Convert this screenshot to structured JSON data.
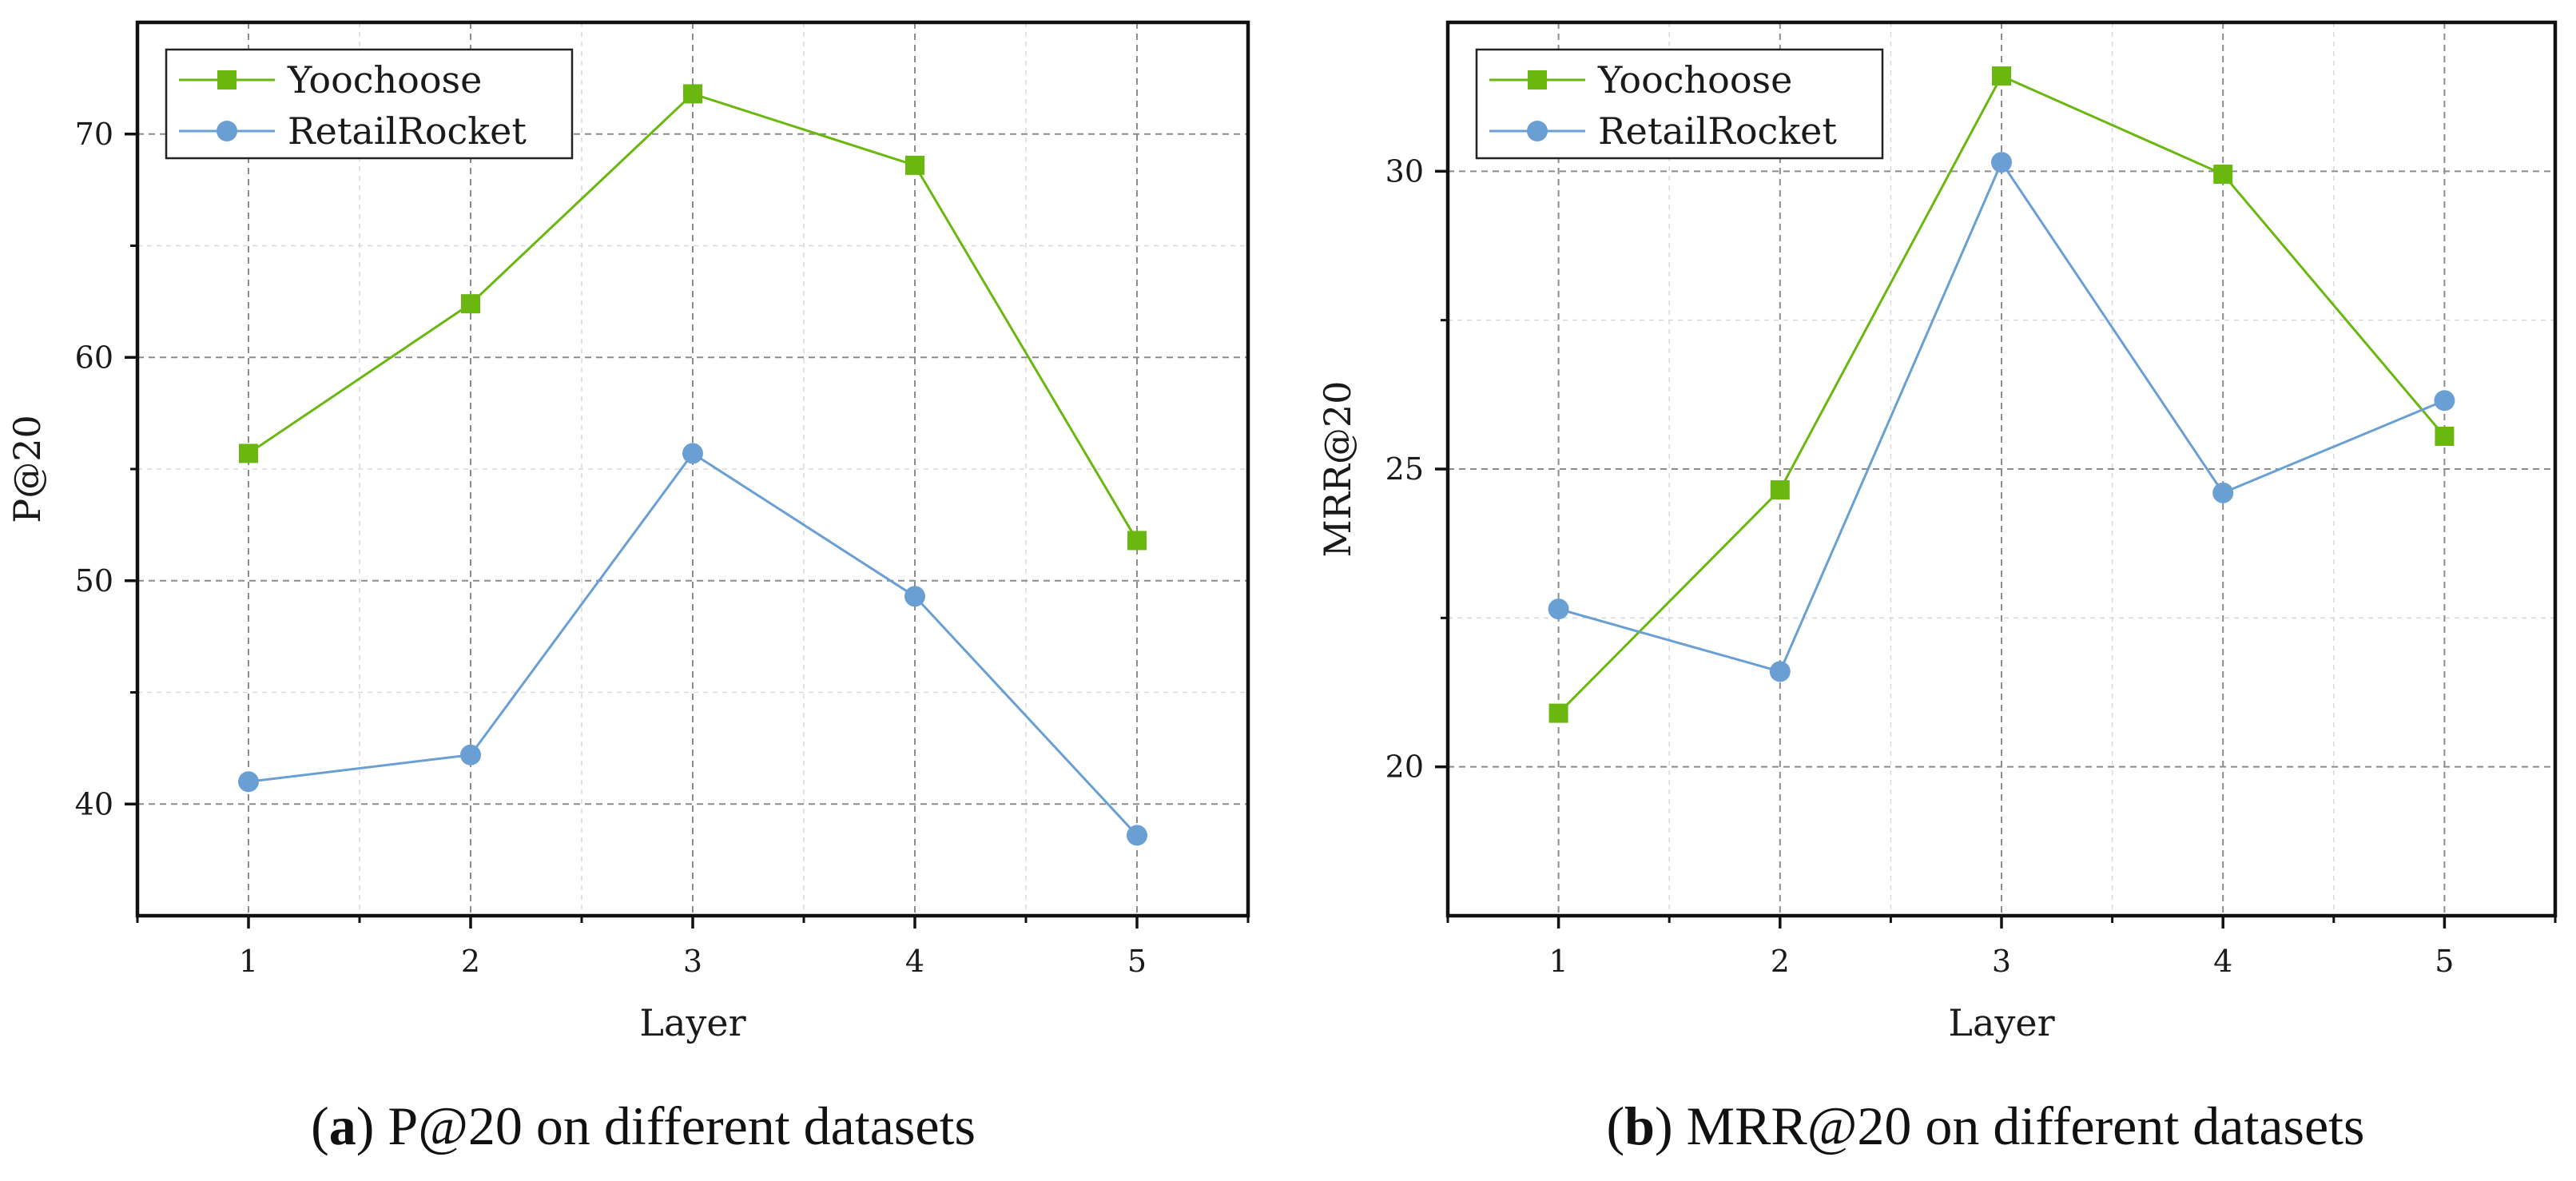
{
  "chart_data": [
    {
      "type": "line",
      "caption_label": "a",
      "caption_text": "P@20 on different datasets",
      "xlabel": "Layer",
      "ylabel": "P@20",
      "x": [
        1,
        2,
        3,
        4,
        5
      ],
      "xlim": [
        0.5,
        5.5
      ],
      "ylim": [
        35,
        75
      ],
      "xticks": [
        1,
        2,
        3,
        4,
        5
      ],
      "yticks": [
        40,
        50,
        60,
        70
      ],
      "grid": true,
      "legend_position": "top-left",
      "series": [
        {
          "name": "Yoochoose",
          "marker": "square",
          "color": "#6ab70f",
          "values": [
            55.7,
            62.4,
            71.8,
            68.6,
            51.8
          ]
        },
        {
          "name": "RetailRocket",
          "marker": "circle",
          "color": "#6a9fd4",
          "values": [
            41.0,
            42.2,
            55.7,
            49.3,
            38.6
          ]
        }
      ]
    },
    {
      "type": "line",
      "caption_label": "b",
      "caption_text": "MRR@20 on different datasets",
      "xlabel": "Layer",
      "ylabel": "MRR@20",
      "x": [
        1,
        2,
        3,
        4,
        5
      ],
      "xlim": [
        0.5,
        5.5
      ],
      "ylim": [
        17.5,
        32.5
      ],
      "xticks": [
        1,
        2,
        3,
        4,
        5
      ],
      "yticks": [
        20,
        25,
        30
      ],
      "grid": true,
      "legend_position": "top-left",
      "series": [
        {
          "name": "Yoochoose",
          "marker": "square",
          "color": "#6ab70f",
          "values": [
            20.9,
            24.65,
            31.6,
            29.95,
            25.55
          ]
        },
        {
          "name": "RetailRocket",
          "marker": "circle",
          "color": "#6a9fd4",
          "values": [
            22.65,
            21.6,
            30.15,
            24.6,
            26.15
          ]
        }
      ]
    }
  ]
}
